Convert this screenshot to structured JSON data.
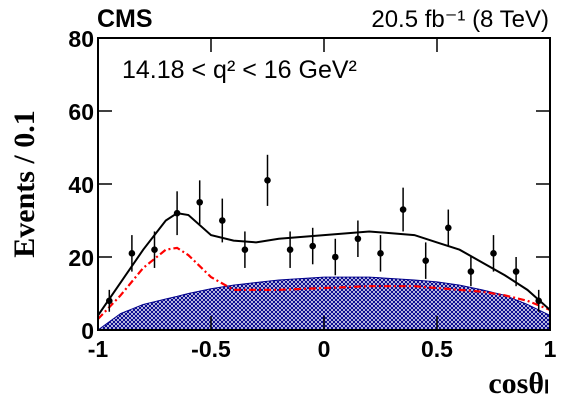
{
  "chart_data": {
    "type": "errorbar",
    "experiment": "CMS",
    "luminosity": "20.5 fb⁻¹ (8 TeV)",
    "annotation": "14.18 < q² < 16 GeV²",
    "y_label": "Events / 0.1",
    "x_label": "cosθₗ",
    "xlim": [
      -1,
      1
    ],
    "xticks": [
      -1,
      -0.5,
      0,
      0.5,
      1
    ],
    "ylim": [
      0,
      80
    ],
    "yticks": [
      0,
      20,
      40,
      60,
      80
    ],
    "points": {
      "color": "#000000",
      "x": [
        -0.95,
        -0.85,
        -0.75,
        -0.65,
        -0.55,
        -0.45,
        -0.35,
        -0.25,
        -0.15,
        -0.05,
        0.05,
        0.15,
        0.25,
        0.35,
        0.45,
        0.55,
        0.65,
        0.75,
        0.85,
        0.95
      ],
      "values": [
        8,
        21,
        22,
        32,
        35,
        30,
        22,
        41,
        22,
        23,
        20,
        25,
        21,
        33,
        19,
        28,
        16,
        21,
        16,
        8
      ],
      "errors": [
        3,
        5,
        5,
        6,
        6,
        6,
        5,
        7,
        5,
        5,
        5,
        5,
        5,
        6,
        5,
        5,
        4,
        5,
        4,
        3
      ]
    },
    "curve_x": [
      -1,
      -0.9,
      -0.8,
      -0.7,
      -0.65,
      -0.6,
      -0.5,
      -0.4,
      -0.3,
      -0.2,
      0,
      0.2,
      0.4,
      0.5,
      0.6,
      0.7,
      0.8,
      0.9,
      1
    ],
    "series": [
      {
        "style": "area",
        "color": "#00008b",
        "values": [
          0,
          4.5,
          7,
          8.5,
          9.2,
          10,
          11.3,
          12.3,
          13,
          13.7,
          14.5,
          14.5,
          13.7,
          13.2,
          12.3,
          11,
          9.5,
          7,
          4
        ]
      },
      {
        "style": "dashdot",
        "color": "#ff0000",
        "values": [
          3,
          9.5,
          17,
          22,
          22.5,
          20.5,
          14.5,
          11,
          11,
          11,
          11.5,
          12,
          12,
          11.5,
          11,
          10.5,
          9.5,
          8,
          5.5
        ]
      },
      {
        "style": "solid",
        "color": "#000000",
        "values": [
          4,
          13,
          22,
          30,
          32,
          31.5,
          26,
          24.5,
          24,
          25,
          26,
          27,
          26,
          24,
          22,
          18.5,
          15,
          11,
          5.5
        ]
      }
    ]
  }
}
